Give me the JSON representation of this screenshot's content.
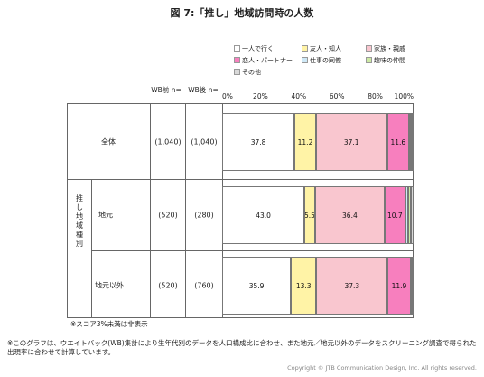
{
  "title": "図 7:「推し」地域訪問時の人数",
  "legend": [
    {
      "label": "一人で行く",
      "color": "#ffffff"
    },
    {
      "label": "友人・知人",
      "color": "#fff3a6"
    },
    {
      "label": "家族・親戚",
      "color": "#f9c6cf"
    },
    {
      "label": "恋人・パートナー",
      "color": "#f77fbe"
    },
    {
      "label": "仕事の同僚",
      "color": "#cfe9f7"
    },
    {
      "label": "趣味の仲間",
      "color": "#cdeaa4"
    },
    {
      "label": "その他",
      "color": "#d9d9d9"
    }
  ],
  "headers": {
    "wb_before": "WB前 n=",
    "wb_after": "WB後 n="
  },
  "row_group": "推し地域種別",
  "footnote": "※スコア3%未満は非表示",
  "note": "※このグラフは、ウエイトバック(WB)集計により生年代別のデータを人口構成比に合わせ、また地元／地元以外のデータをスクリーニング調査で得られた出現率に合わせて計算しています。",
  "copyright": "Copyright © JTB Communication Design, Inc. All rights reserved.",
  "chart_data": {
    "type": "bar",
    "orientation": "horizontal",
    "stacked": true,
    "percent_scale": true,
    "title": "図 7:「推し」地域訪問時の人数",
    "xlim": [
      0,
      100
    ],
    "ticks": [
      "0%",
      "20%",
      "40%",
      "60%",
      "80%",
      "100%"
    ],
    "categories": [
      "全体",
      "地元",
      "地元以外"
    ],
    "n_before": [
      "(1,040)",
      "(520)",
      "(520)"
    ],
    "n_after": [
      "(1,040)",
      "(280)",
      "(760)"
    ],
    "series": [
      {
        "name": "一人で行く",
        "values": [
          37.8,
          43.0,
          35.9
        ],
        "labels": [
          "37.8",
          "43.0",
          "35.9"
        ]
      },
      {
        "name": "友人・知人",
        "values": [
          11.2,
          5.5,
          13.3
        ],
        "labels": [
          "11.2",
          "5.5",
          "13.3"
        ]
      },
      {
        "name": "家族・親戚",
        "values": [
          37.1,
          36.4,
          37.3
        ],
        "labels": [
          "37.1",
          "36.4",
          "37.3"
        ]
      },
      {
        "name": "恋人・パートナー",
        "values": [
          11.6,
          10.7,
          11.9
        ],
        "labels": [
          "11.6",
          "10.7",
          "11.9"
        ]
      },
      {
        "name": "仕事の同僚",
        "values": [
          0.8,
          1.5,
          0.6
        ],
        "labels": [
          "",
          "",
          ""
        ]
      },
      {
        "name": "趣味の仲間",
        "values": [
          0.7,
          1.6,
          0.5
        ],
        "labels": [
          "",
          "",
          ""
        ]
      },
      {
        "name": "その他",
        "values": [
          0.8,
          1.3,
          0.5
        ],
        "labels": [
          "",
          "",
          ""
        ]
      }
    ]
  }
}
